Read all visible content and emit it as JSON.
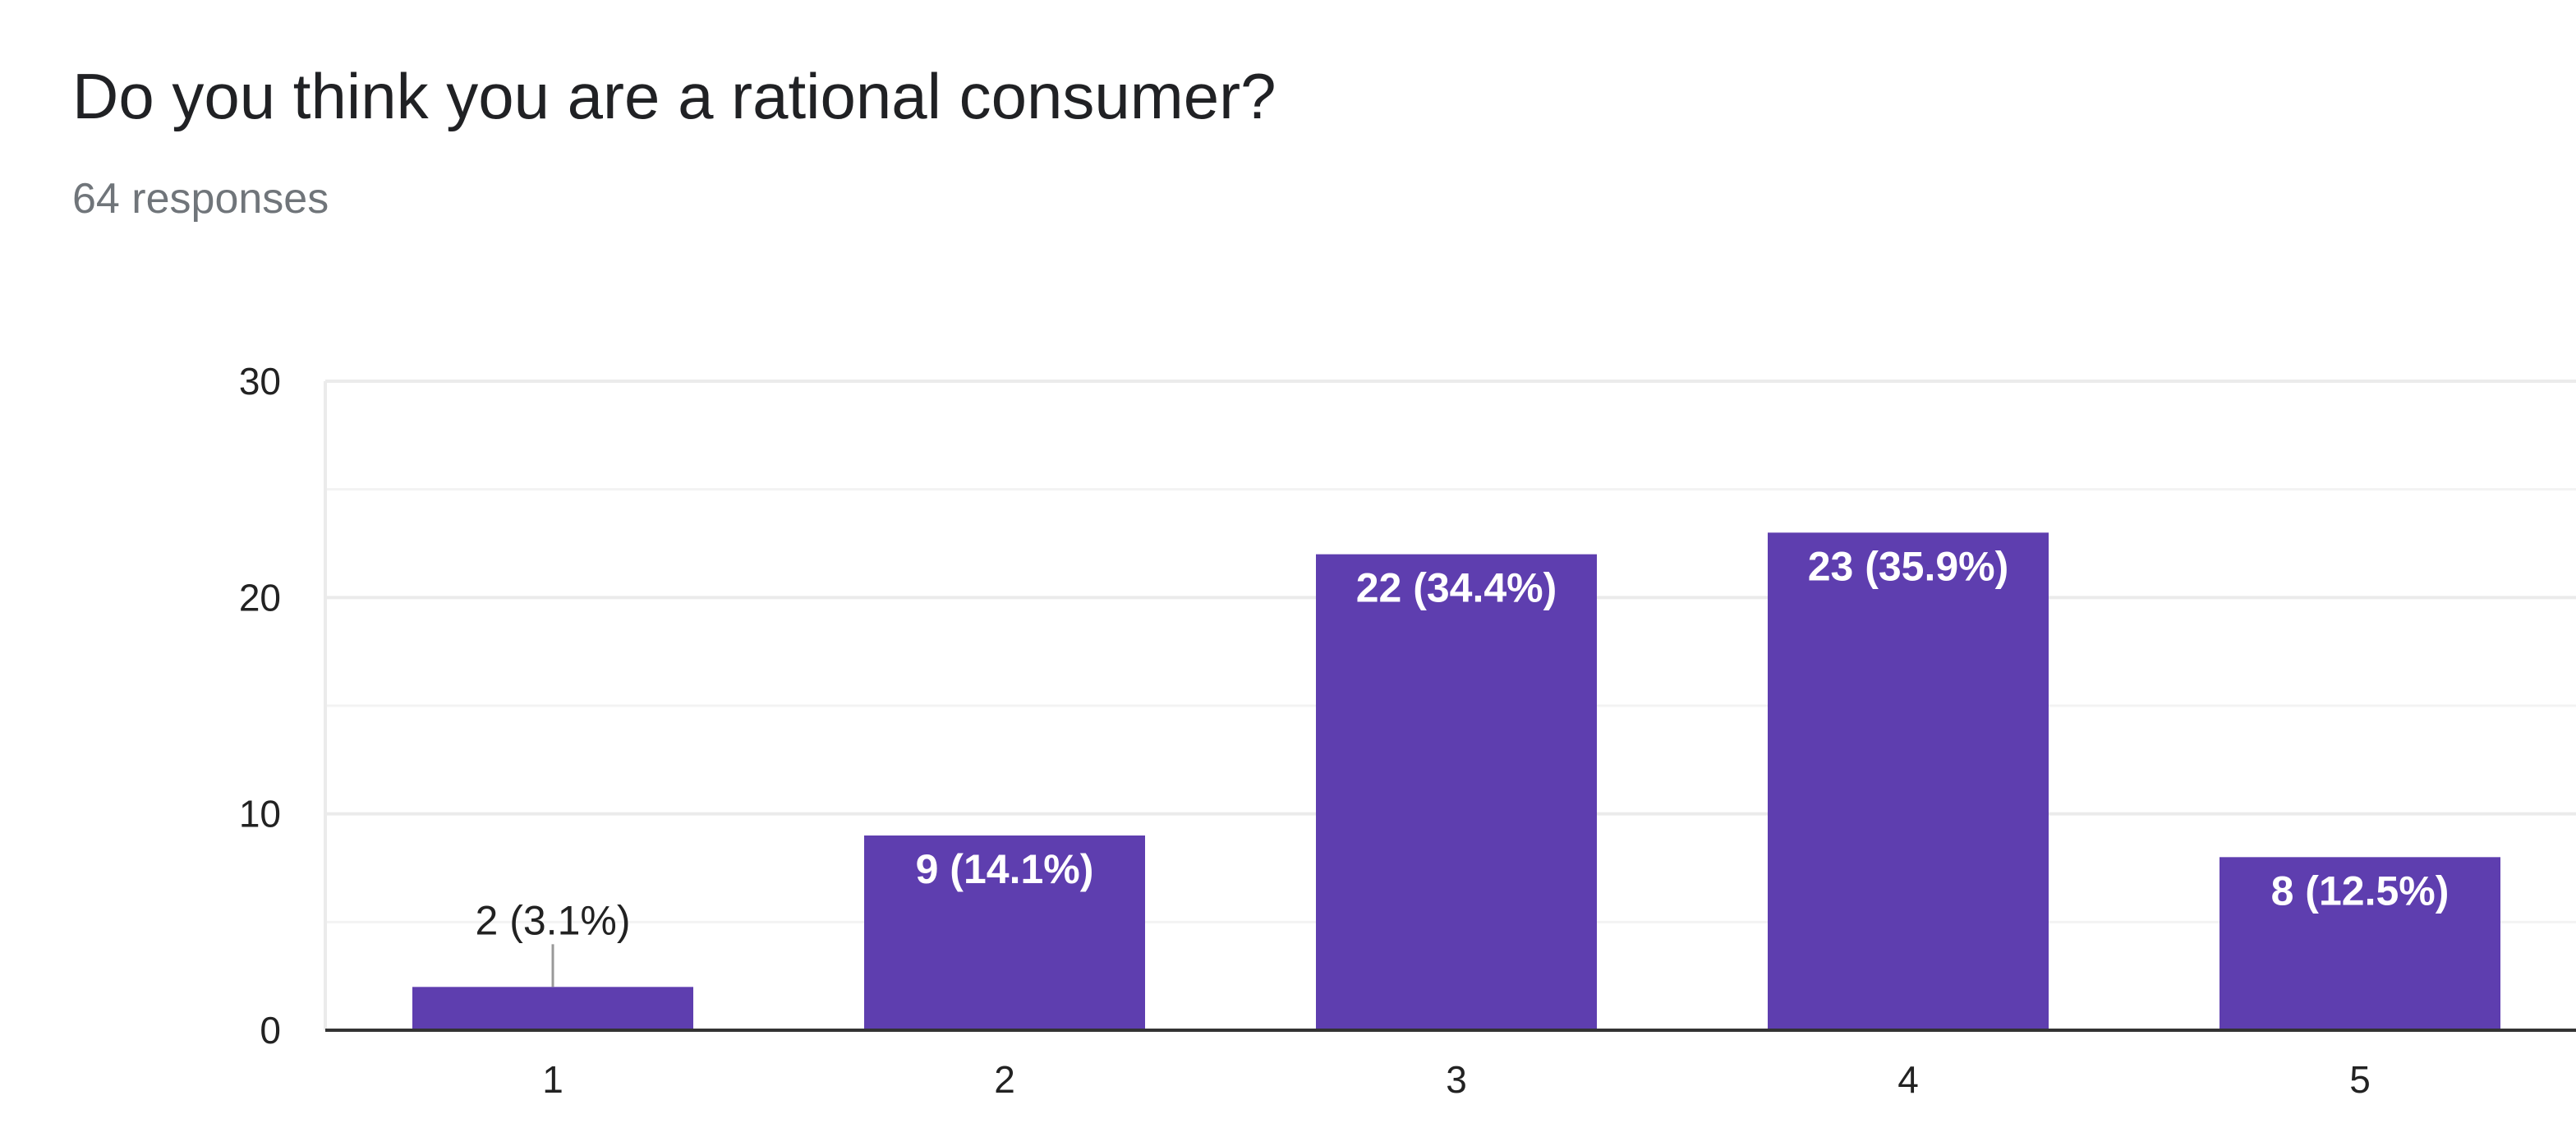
{
  "question": {
    "title": "Do you think you are a rational consumer?",
    "responses": "64 responses"
  },
  "colors": {
    "bar": "#5e3eaf",
    "grid": "#ebebeb",
    "baseline": "#333333",
    "leader": "#999999"
  },
  "chart_data": {
    "type": "bar",
    "title": "Do you think you are a rational consumer?",
    "subtitle": "64 responses",
    "categories": [
      "1",
      "2",
      "3",
      "4",
      "5"
    ],
    "values": [
      2,
      9,
      22,
      23,
      8
    ],
    "data_labels": [
      "2 (3.1%)",
      "9 (14.1%)",
      "22 (34.4%)",
      "23 (35.9%)",
      "8 (12.5%)"
    ],
    "ylim": [
      0,
      30
    ],
    "yticks": [
      0,
      10,
      20,
      30
    ],
    "minor_gridlines": [
      5,
      15,
      25
    ],
    "xlabel": "",
    "ylabel": "",
    "grid": true,
    "legend": "none"
  }
}
